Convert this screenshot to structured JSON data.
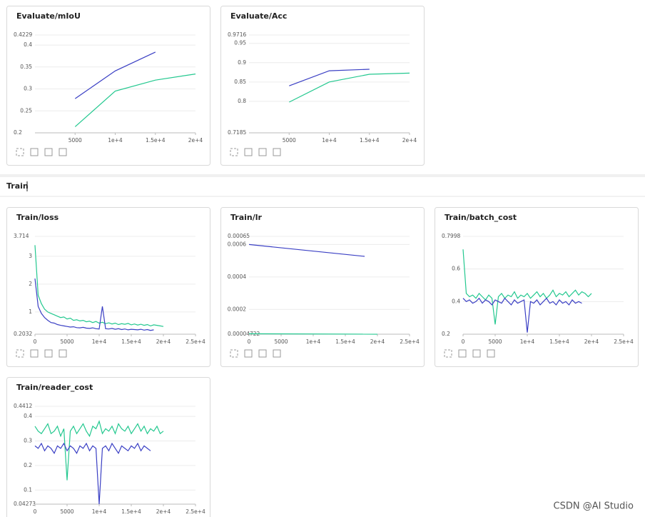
{
  "section_title": "Train",
  "watermark": "CSDN @AI Studio",
  "chart_data": [
    {
      "type": "line",
      "title": "Evaluate/mIoU",
      "xlim": [
        0,
        20000
      ],
      "ylim": [
        0.2,
        0.4229
      ],
      "xticks": [
        5000,
        {
          "value": 10000,
          "label": "1e+4"
        },
        {
          "value": 15000,
          "label": "1.5e+4"
        },
        {
          "value": 20000,
          "label": "2e+4"
        }
      ],
      "yticks": [
        0.2,
        0.25,
        0.3,
        0.35,
        0.4,
        0.4229
      ],
      "grid": true,
      "series": [
        {
          "color": "#3a3fc4",
          "x": [
            5000,
            10000,
            15000
          ],
          "values": [
            0.278,
            0.341,
            0.384
          ]
        },
        {
          "color": "#23c88f",
          "x": [
            5000,
            10000,
            15000,
            20000
          ],
          "values": [
            0.214,
            0.295,
            0.32,
            0.334
          ]
        }
      ]
    },
    {
      "type": "line",
      "title": "Evaluate/Acc",
      "xlim": [
        0,
        20000
      ],
      "ylim": [
        0.7185,
        0.9716
      ],
      "xticks": [
        5000,
        {
          "value": 10000,
          "label": "1e+4"
        },
        {
          "value": 15000,
          "label": "1.5e+4"
        },
        {
          "value": 20000,
          "label": "2e+4"
        }
      ],
      "yticks": [
        0.7185,
        0.8,
        0.85,
        0.9,
        0.95,
        0.9716
      ],
      "grid": true,
      "series": [
        {
          "color": "#3a3fc4",
          "x": [
            5000,
            10000,
            15000
          ],
          "values": [
            0.84,
            0.879,
            0.883
          ]
        },
        {
          "color": "#23c88f",
          "x": [
            5000,
            10000,
            15000,
            20000
          ],
          "values": [
            0.798,
            0.85,
            0.87,
            0.873
          ]
        }
      ]
    },
    {
      "type": "line",
      "title": "Train/loss",
      "xlim": [
        0,
        25000
      ],
      "ylim": [
        0.2032,
        3.714
      ],
      "xticks": [
        0,
        5000,
        {
          "value": 10000,
          "label": "1e+4"
        },
        {
          "value": 15000,
          "label": "1.5e+4"
        },
        {
          "value": 20000,
          "label": "2e+4"
        },
        {
          "value": 25000,
          "label": "2.5e+4"
        }
      ],
      "yticks": [
        0.2032,
        1,
        2,
        3,
        3.714
      ],
      "grid": true,
      "series": [
        {
          "color": "#23c88f",
          "x": [
            0,
            500,
            1000,
            1500,
            2000,
            2500,
            3000,
            3500,
            4000,
            4500,
            5000,
            5500,
            6000,
            6500,
            7000,
            7500,
            8000,
            8500,
            9000,
            9500,
            10000,
            10500,
            11000,
            11500,
            12000,
            12500,
            13000,
            13500,
            14000,
            14500,
            15000,
            15500,
            16000,
            16500,
            17000,
            17500,
            18000,
            18500,
            19000,
            19500,
            20000
          ],
          "values": [
            3.4,
            1.6,
            1.3,
            1.1,
            1.0,
            0.95,
            0.9,
            0.85,
            0.8,
            0.82,
            0.75,
            0.78,
            0.7,
            0.72,
            0.68,
            0.7,
            0.65,
            0.67,
            0.62,
            0.66,
            0.6,
            0.63,
            0.58,
            0.61,
            0.57,
            0.6,
            0.55,
            0.58,
            0.56,
            0.59,
            0.54,
            0.57,
            0.53,
            0.56,
            0.52,
            0.55,
            0.5,
            0.54,
            0.52,
            0.5,
            0.48
          ]
        },
        {
          "color": "#3a3fc4",
          "x": [
            0,
            500,
            1000,
            1500,
            2000,
            2500,
            3000,
            3500,
            4000,
            4500,
            5000,
            5500,
            6000,
            6500,
            7000,
            7500,
            8000,
            8500,
            9000,
            9500,
            10000,
            10500,
            11000,
            11500,
            12000,
            12500,
            13000,
            13500,
            14000,
            14500,
            15000,
            15500,
            16000,
            16500,
            17000,
            17500,
            18000,
            18500
          ],
          "values": [
            2.2,
            1.2,
            0.95,
            0.8,
            0.7,
            0.62,
            0.6,
            0.55,
            0.52,
            0.5,
            0.48,
            0.46,
            0.47,
            0.44,
            0.43,
            0.45,
            0.42,
            0.41,
            0.43,
            0.4,
            0.39,
            1.2,
            0.4,
            0.39,
            0.41,
            0.38,
            0.4,
            0.37,
            0.39,
            0.36,
            0.38,
            0.37,
            0.36,
            0.38,
            0.35,
            0.37,
            0.34,
            0.36
          ]
        }
      ]
    },
    {
      "type": "line",
      "title": "Train/lr",
      "xlim": [
        0,
        25000
      ],
      "ylim": [
        4.722e-05,
        0.00065
      ],
      "xticks": [
        0,
        5000,
        {
          "value": 10000,
          "label": "1e+4"
        },
        {
          "value": 15000,
          "label": "1.5e+4"
        },
        {
          "value": 20000,
          "label": "2e+4"
        },
        {
          "value": 25000,
          "label": "2.5e+4"
        }
      ],
      "yticks": [
        4.722e-05,
        0.0002,
        0.0004,
        0.0006,
        0.00065
      ],
      "grid": true,
      "series": [
        {
          "color": "#3a3fc4",
          "x": [
            0,
            18000
          ],
          "values": [
            0.0006,
            0.000527
          ]
        },
        {
          "color": "#23c88f",
          "x": [
            0,
            20000
          ],
          "values": [
            4.97e-05,
            4.722e-05
          ]
        }
      ]
    },
    {
      "type": "line",
      "title": "Train/batch_cost",
      "xlim": [
        0,
        25000
      ],
      "ylim": [
        0.2,
        0.7998
      ],
      "xticks": [
        0,
        5000,
        {
          "value": 10000,
          "label": "1e+4"
        },
        {
          "value": 15000,
          "label": "1.5e+4"
        },
        {
          "value": 20000,
          "label": "2e+4"
        },
        {
          "value": 25000,
          "label": "2.5e+4"
        }
      ],
      "yticks": [
        0.2,
        0.4,
        0.6,
        0.7998
      ],
      "grid": true,
      "series": [
        {
          "color": "#23c88f",
          "x": [
            0,
            500,
            1000,
            1500,
            2000,
            2500,
            3000,
            3500,
            4000,
            4500,
            5000,
            5500,
            6000,
            6500,
            7000,
            7500,
            8000,
            8500,
            9000,
            9500,
            10000,
            10500,
            11000,
            11500,
            12000,
            12500,
            13000,
            13500,
            14000,
            14500,
            15000,
            15500,
            16000,
            16500,
            17000,
            17500,
            18000,
            18500,
            19000,
            19500,
            20000
          ],
          "values": [
            0.72,
            0.45,
            0.43,
            0.44,
            0.42,
            0.45,
            0.43,
            0.41,
            0.44,
            0.42,
            0.26,
            0.43,
            0.45,
            0.42,
            0.44,
            0.43,
            0.46,
            0.42,
            0.44,
            0.43,
            0.45,
            0.42,
            0.44,
            0.46,
            0.43,
            0.45,
            0.42,
            0.44,
            0.47,
            0.43,
            0.45,
            0.44,
            0.46,
            0.43,
            0.45,
            0.47,
            0.44,
            0.46,
            0.45,
            0.43,
            0.45
          ]
        },
        {
          "color": "#3a3fc4",
          "x": [
            0,
            500,
            1000,
            1500,
            2000,
            2500,
            3000,
            3500,
            4000,
            4500,
            5000,
            5500,
            6000,
            6500,
            7000,
            7500,
            8000,
            8500,
            9000,
            9500,
            10000,
            10500,
            11000,
            11500,
            12000,
            12500,
            13000,
            13500,
            14000,
            14500,
            15000,
            15500,
            16000,
            16500,
            17000,
            17500,
            18000,
            18500
          ],
          "values": [
            0.42,
            0.4,
            0.41,
            0.39,
            0.4,
            0.42,
            0.39,
            0.41,
            0.4,
            0.38,
            0.41,
            0.4,
            0.39,
            0.42,
            0.4,
            0.38,
            0.41,
            0.39,
            0.4,
            0.41,
            0.21,
            0.4,
            0.39,
            0.41,
            0.38,
            0.4,
            0.42,
            0.39,
            0.4,
            0.38,
            0.41,
            0.39,
            0.4,
            0.38,
            0.41,
            0.39,
            0.4,
            0.39
          ]
        }
      ]
    },
    {
      "type": "line",
      "title": "Train/reader_cost",
      "xlim": [
        0,
        25000
      ],
      "ylim": [
        0.04273,
        0.4412
      ],
      "xticks": [
        0,
        5000,
        {
          "value": 10000,
          "label": "1e+4"
        },
        {
          "value": 15000,
          "label": "1.5e+4"
        },
        {
          "value": 20000,
          "label": "2e+4"
        },
        {
          "value": 25000,
          "label": "2.5e+4"
        }
      ],
      "yticks": [
        0.04273,
        0.1,
        0.2,
        0.3,
        0.4,
        0.4412
      ],
      "grid": true,
      "series": [
        {
          "color": "#23c88f",
          "x": [
            0,
            500,
            1000,
            1500,
            2000,
            2500,
            3000,
            3500,
            4000,
            4500,
            5000,
            5500,
            6000,
            6500,
            7000,
            7500,
            8000,
            8500,
            9000,
            9500,
            10000,
            10500,
            11000,
            11500,
            12000,
            12500,
            13000,
            13500,
            14000,
            14500,
            15000,
            15500,
            16000,
            16500,
            17000,
            17500,
            18000,
            18500,
            19000,
            19500,
            20000
          ],
          "values": [
            0.36,
            0.34,
            0.33,
            0.35,
            0.37,
            0.33,
            0.34,
            0.36,
            0.32,
            0.35,
            0.14,
            0.34,
            0.36,
            0.33,
            0.35,
            0.37,
            0.34,
            0.32,
            0.36,
            0.35,
            0.38,
            0.33,
            0.35,
            0.34,
            0.36,
            0.33,
            0.37,
            0.35,
            0.34,
            0.36,
            0.33,
            0.35,
            0.37,
            0.34,
            0.36,
            0.33,
            0.35,
            0.34,
            0.36,
            0.33,
            0.34
          ]
        },
        {
          "color": "#3a3fc4",
          "x": [
            0,
            500,
            1000,
            1500,
            2000,
            2500,
            3000,
            3500,
            4000,
            4500,
            5000,
            5500,
            6000,
            6500,
            7000,
            7500,
            8000,
            8500,
            9000,
            9500,
            10000,
            10500,
            11000,
            11500,
            12000,
            12500,
            13000,
            13500,
            14000,
            14500,
            15000,
            15500,
            16000,
            16500,
            17000,
            17500,
            18000
          ],
          "values": [
            0.28,
            0.27,
            0.29,
            0.26,
            0.28,
            0.27,
            0.25,
            0.28,
            0.27,
            0.29,
            0.26,
            0.28,
            0.27,
            0.25,
            0.28,
            0.27,
            0.29,
            0.26,
            0.28,
            0.27,
            0.04273,
            0.27,
            0.28,
            0.26,
            0.29,
            0.27,
            0.25,
            0.28,
            0.27,
            0.26,
            0.28,
            0.27,
            0.29,
            0.26,
            0.28,
            0.27,
            0.26
          ]
        }
      ]
    }
  ]
}
